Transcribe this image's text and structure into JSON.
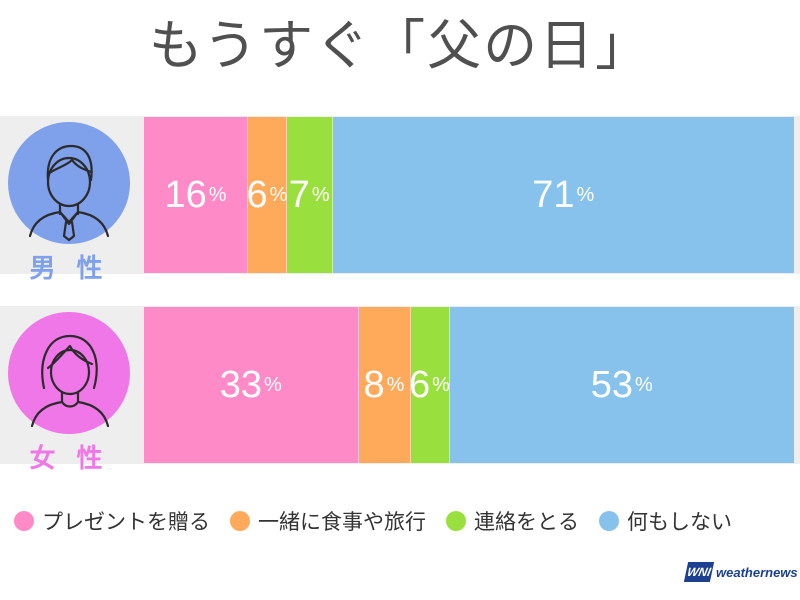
{
  "title": "もうすぐ「父の日」",
  "colors": {
    "gift": "#ff8ac8",
    "meal_trip": "#ffa95b",
    "contact": "#99e03f",
    "nothing": "#86c2ec",
    "male": "#7fa0ea",
    "female": "#f077e8"
  },
  "chart_data": {
    "type": "bar",
    "stacked": true,
    "orientation": "horizontal",
    "categories": [
      "男 性",
      "女 性"
    ],
    "series": [
      {
        "name": "プレゼントを贈る",
        "values": [
          16,
          33
        ]
      },
      {
        "name": "一緒に食事や旅行",
        "values": [
          6,
          8
        ]
      },
      {
        "name": "連絡をとる",
        "values": [
          7,
          6
        ]
      },
      {
        "name": "何もしない",
        "values": [
          71,
          53
        ]
      }
    ],
    "unit": "%",
    "legend_position": "bottom"
  },
  "rows": [
    {
      "label": "男 性",
      "icon": "male-avatar-icon"
    },
    {
      "label": "女 性",
      "icon": "female-avatar-icon"
    }
  ],
  "logo": {
    "mark": "WNI",
    "text": "weathernews"
  }
}
